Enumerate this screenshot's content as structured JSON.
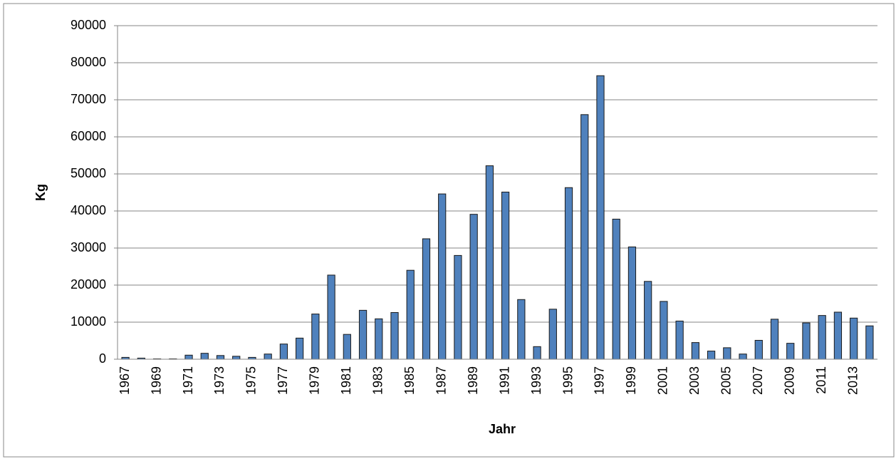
{
  "chart_data": {
    "type": "bar",
    "x_label": "Jahr",
    "y_label": "Kg",
    "categories": [
      "1967",
      null,
      "1969",
      null,
      "1971",
      null,
      "1973",
      null,
      "1975",
      null,
      "1977",
      null,
      "1979",
      null,
      "1981",
      null,
      "1983",
      null,
      "1985",
      null,
      "1987",
      null,
      "1989",
      null,
      "1991",
      null,
      "1993",
      null,
      "1995",
      null,
      "1997",
      null,
      "1999",
      null,
      "2001",
      null,
      "2003",
      null,
      "2005",
      null,
      "2007",
      null,
      "2009",
      null,
      "2011",
      null,
      "2013",
      null
    ],
    "values": [
      500,
      300,
      100,
      100,
      1100,
      1600,
      1000,
      800,
      500,
      1400,
      4100,
      5700,
      12200,
      22700,
      6700,
      13200,
      10900,
      12600,
      24000,
      32500,
      44600,
      28000,
      39100,
      52200,
      45100,
      16100,
      3400,
      13500,
      46300,
      66000,
      76500,
      37800,
      30300,
      21000,
      15600,
      10300,
      4500,
      2200,
      3100,
      1400,
      5100,
      10800,
      4300,
      9800,
      11800,
      12700,
      11100,
      9000
    ],
    "color": "#4f81bd",
    "ylim": [
      0,
      90000
    ],
    "yticks": [
      0,
      10000,
      20000,
      30000,
      40000,
      50000,
      60000,
      70000,
      80000,
      90000
    ],
    "grid": true
  }
}
